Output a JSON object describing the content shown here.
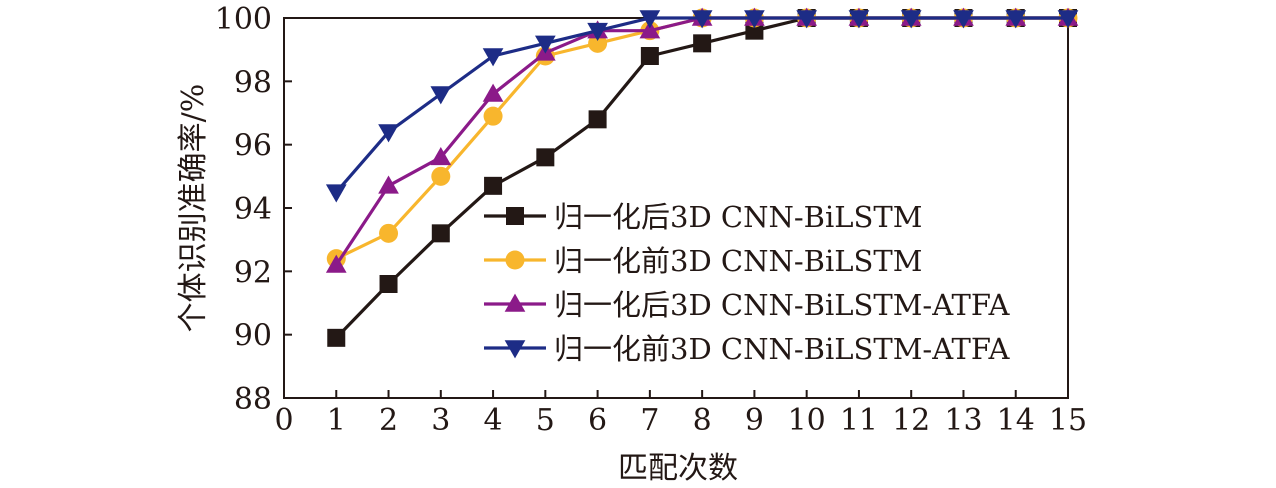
{
  "chart_data": {
    "type": "line",
    "title": "",
    "xlabel": "匹配次数",
    "ylabel": "个体识别准确率/%",
    "xlim": [
      0,
      15
    ],
    "ylim": [
      88,
      100
    ],
    "x_ticks": [
      "0",
      "1",
      "2",
      "3",
      "4",
      "5",
      "6",
      "7",
      "8",
      "9",
      "10",
      "11",
      "12",
      "13",
      "14",
      "15"
    ],
    "y_ticks": [
      "88",
      "90",
      "92",
      "94",
      "96",
      "98",
      "100"
    ],
    "grid": false,
    "legend_position": "center-right",
    "series": [
      {
        "name": "归一化后3D CNN-BiLSTM",
        "color": "#231815",
        "marker": "square",
        "x": [
          1,
          2,
          3,
          4,
          5,
          6,
          7,
          8,
          9,
          10,
          11,
          12,
          13,
          14,
          15
        ],
        "y": [
          89.9,
          91.6,
          93.2,
          94.7,
          95.6,
          96.8,
          98.8,
          99.2,
          99.6,
          100,
          100,
          100,
          100,
          100,
          100
        ]
      },
      {
        "name": "归一化前3D CNN-BiLSTM",
        "color": "#F8B62D",
        "marker": "circle",
        "x": [
          1,
          2,
          3,
          4,
          5,
          6,
          7,
          8,
          9,
          10,
          11,
          12,
          13,
          14,
          15
        ],
        "y": [
          92.4,
          93.2,
          95.0,
          96.9,
          98.8,
          99.2,
          99.6,
          100,
          100,
          100,
          100,
          100,
          100,
          100,
          100
        ]
      },
      {
        "name": "归一化后3D CNN-BiLSTM-ATFA",
        "color": "#8B1A89",
        "marker": "triangle-up",
        "x": [
          1,
          2,
          3,
          4,
          5,
          6,
          7,
          8,
          9,
          10,
          11,
          12,
          13,
          14,
          15
        ],
        "y": [
          92.2,
          94.7,
          95.6,
          97.6,
          98.9,
          99.6,
          99.6,
          100,
          100,
          100,
          100,
          100,
          100,
          100,
          100
        ]
      },
      {
        "name": "归一化前3D CNN-BiLSTM-ATFA",
        "color": "#1D2C86",
        "marker": "triangle-down",
        "x": [
          1,
          2,
          3,
          4,
          5,
          6,
          7,
          8,
          9,
          10,
          11,
          12,
          13,
          14,
          15
        ],
        "y": [
          94.5,
          96.4,
          97.6,
          98.8,
          99.2,
          99.6,
          100,
          100,
          100,
          100,
          100,
          100,
          100,
          100,
          100
        ]
      }
    ]
  }
}
